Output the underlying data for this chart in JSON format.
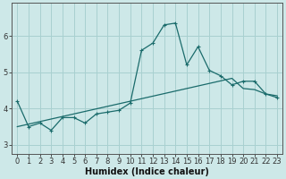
{
  "title": "",
  "xlabel": "Humidex (Indice chaleur)",
  "bg_color": "#cde8e8",
  "grid_color": "#a8d0d0",
  "line_color": "#1a6b6b",
  "x_data": [
    0,
    1,
    2,
    3,
    4,
    5,
    6,
    7,
    8,
    9,
    10,
    11,
    12,
    13,
    14,
    15,
    16,
    17,
    18,
    19,
    20,
    21,
    22,
    23
  ],
  "y_main": [
    4.2,
    3.5,
    3.6,
    3.4,
    3.75,
    3.75,
    3.6,
    3.85,
    3.9,
    3.95,
    4.15,
    5.6,
    5.8,
    6.3,
    6.35,
    5.2,
    5.7,
    5.05,
    4.9,
    4.65,
    4.75,
    4.75,
    4.4,
    4.3
  ],
  "y_trend": [
    3.5,
    3.57,
    3.64,
    3.71,
    3.78,
    3.85,
    3.92,
    3.99,
    4.06,
    4.13,
    4.2,
    4.27,
    4.34,
    4.41,
    4.48,
    4.55,
    4.62,
    4.69,
    4.76,
    4.83,
    4.55,
    4.52,
    4.4,
    4.35
  ],
  "xlim": [
    -0.5,
    23.5
  ],
  "ylim": [
    2.75,
    6.9
  ],
  "yticks": [
    3,
    4,
    5,
    6
  ],
  "xticks": [
    0,
    1,
    2,
    3,
    4,
    5,
    6,
    7,
    8,
    9,
    10,
    11,
    12,
    13,
    14,
    15,
    16,
    17,
    18,
    19,
    20,
    21,
    22,
    23
  ],
  "xlabel_fontsize": 7,
  "tick_fontsize": 6,
  "spine_color": "#555555",
  "marker_size": 3.5,
  "linewidth": 0.9
}
